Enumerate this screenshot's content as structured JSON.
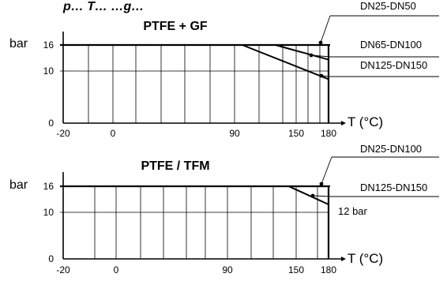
{
  "header_text": "p… T… …g…",
  "chart_data": [
    {
      "type": "line",
      "title": "PTFE + GF",
      "ylabel": "bar",
      "xlabel": "T (°C)",
      "x_ticks": [
        "-20",
        "0",
        "90",
        "150",
        "180"
      ],
      "y_ticks": [
        "0",
        "10",
        "16"
      ],
      "ylim": [
        0,
        16
      ],
      "series": [
        {
          "name": "DN25-DN50",
          "x": [
            -20,
            180
          ],
          "y": [
            16,
            16
          ]
        },
        {
          "name": "DN65-DN100",
          "x": [
            -20,
            140,
            180
          ],
          "y": [
            16,
            16,
            13
          ]
        },
        {
          "name": "DN125-DN150",
          "x": [
            -20,
            115,
            180
          ],
          "y": [
            16,
            16,
            9
          ]
        }
      ]
    },
    {
      "type": "line",
      "title": "PTFE / TFM",
      "ylabel": "bar",
      "xlabel": "T (°C)",
      "x_ticks": [
        "-20",
        "0",
        "90",
        "150",
        "180"
      ],
      "y_ticks": [
        "0",
        "10",
        "16"
      ],
      "ylim": [
        0,
        16
      ],
      "annotation": "12 bar",
      "series": [
        {
          "name": "DN25-DN100",
          "x": [
            -20,
            180
          ],
          "y": [
            16,
            16
          ]
        },
        {
          "name": "DN125-DN150",
          "x": [
            -20,
            150,
            180
          ],
          "y": [
            16,
            16,
            12
          ]
        }
      ]
    }
  ]
}
